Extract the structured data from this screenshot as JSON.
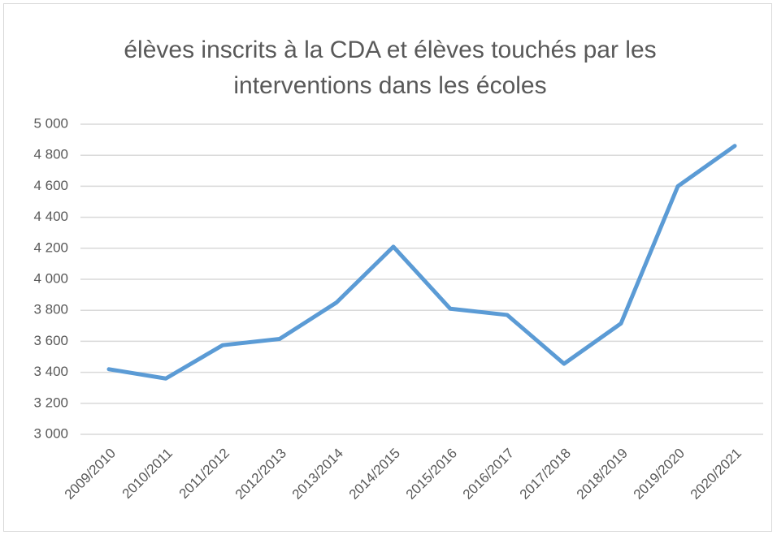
{
  "chart_data": {
    "type": "line",
    "title": "élèves inscrits à la CDA et élèves touchés par les interventions dans les écoles",
    "categories": [
      "2009/2010",
      "2010/2011",
      "2011/2012",
      "2012/2013",
      "2013/2014",
      "2014/2015",
      "2015/2016",
      "2016/2017",
      "2017/2018",
      "2018/2019",
      "2019/2020",
      "2020/2021"
    ],
    "values": [
      3420,
      3360,
      3575,
      3615,
      3850,
      4210,
      3810,
      3770,
      3455,
      3715,
      4600,
      4860
    ],
    "color": "#5b9bd5",
    "ylim": [
      3000,
      5000
    ],
    "yticks": [
      {
        "value": 3000,
        "label": "3 000"
      },
      {
        "value": 3200,
        "label": "3 200"
      },
      {
        "value": 3400,
        "label": "3 400"
      },
      {
        "value": 3600,
        "label": "3 600"
      },
      {
        "value": 3800,
        "label": "3 800"
      },
      {
        "value": 4000,
        "label": "4 000"
      },
      {
        "value": 4200,
        "label": "4 200"
      },
      {
        "value": 4400,
        "label": "4 400"
      },
      {
        "value": 4600,
        "label": "4 600"
      },
      {
        "value": 4800,
        "label": "4 800"
      },
      {
        "value": 5000,
        "label": "5 000"
      }
    ],
    "grid": true
  }
}
